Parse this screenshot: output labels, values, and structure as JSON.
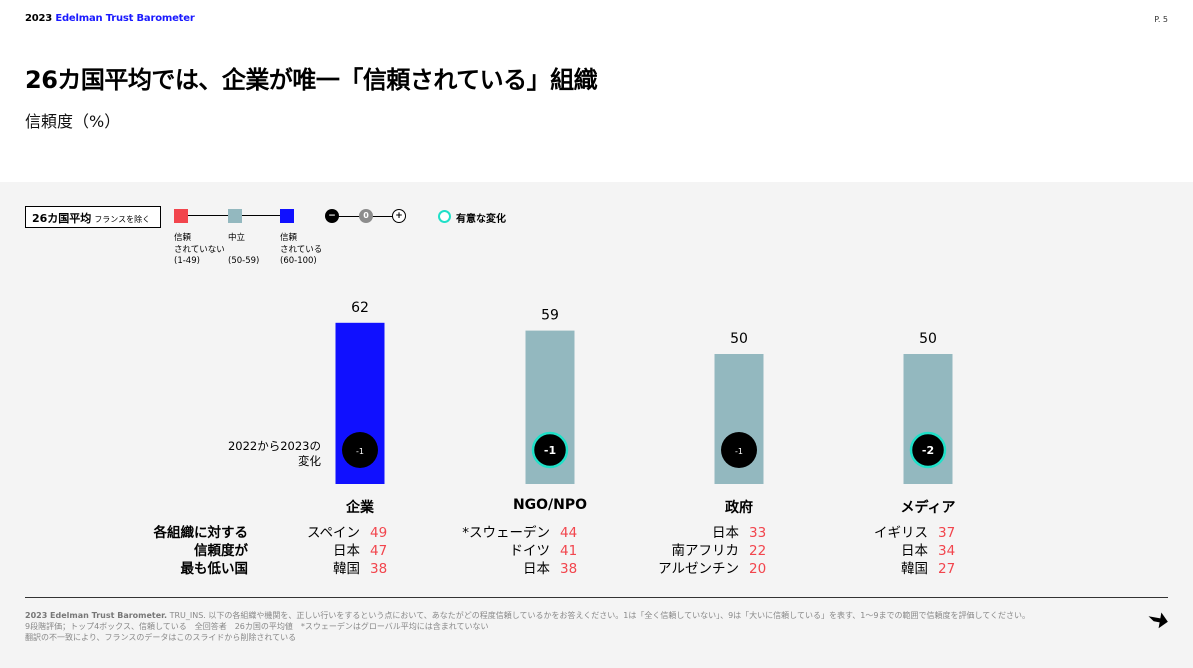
{
  "header": {
    "brand_year": "2023",
    "brand_name": "Edelman Trust Barometer",
    "page": "P. 5"
  },
  "title": "26カ国平均では、企業が唯一「信頼されている」組織",
  "subtitle": "信頼度（%）",
  "legend": {
    "box_label": "26カ国平均",
    "box_small": "フランスを除く",
    "scale": [
      {
        "lines": [
          "信頼",
          "されていない",
          "(1-49)"
        ],
        "color": "#f2454d"
      },
      {
        "lines": [
          "中立",
          "",
          "(50-59)"
        ],
        "color": "#93b8bf"
      },
      {
        "lines": [
          "信頼",
          "されている",
          "(60-100)"
        ],
        "color": "#1010ff"
      }
    ],
    "change_minus": "−",
    "change_zero": "0",
    "change_plus": "+",
    "significant_label": "有意な変化",
    "significant_color": "#20e0c8"
  },
  "change_axis_label": [
    "2022から2023の",
    "変化"
  ],
  "chart_data": {
    "type": "bar",
    "categories": [
      "企業",
      "NGO/NPO",
      "政府",
      "メディア"
    ],
    "values": [
      62,
      59,
      50,
      50
    ],
    "changes": [
      "-1",
      "-1",
      "-1",
      "-2"
    ],
    "significant": [
      false,
      true,
      false,
      true
    ],
    "ylim": [
      0,
      100
    ],
    "colors": {
      "trusted": "#1010ff",
      "neutral": "#93b8bf",
      "distrusted": "#f2454d"
    }
  },
  "lowest_header": [
    "各組織に対する",
    "信頼度が",
    "最も低い国"
  ],
  "lowest": [
    [
      {
        "country": "スペイン",
        "value": "49"
      },
      {
        "country": "日本",
        "value": "47"
      },
      {
        "country": "韓国",
        "value": "38"
      }
    ],
    [
      {
        "country": "*スウェーデン",
        "value": "44"
      },
      {
        "country": "ドイツ",
        "value": "41"
      },
      {
        "country": "日本",
        "value": "38"
      }
    ],
    [
      {
        "country": "日本",
        "value": "33"
      },
      {
        "country": "南アフリカ",
        "value": "22"
      },
      {
        "country": "アルゼンチン",
        "value": "20"
      }
    ],
    [
      {
        "country": "イギリス",
        "value": "37"
      },
      {
        "country": "日本",
        "value": "34"
      },
      {
        "country": "韓国",
        "value": "27"
      }
    ]
  ],
  "footnote": {
    "source": "2023 Edelman Trust Barometer.",
    "line1": "TRU_INS. 以下の各組織や機関を、正しい行いをするという点において、あなたがどの程度信頼しているかをお答えください。1は「全く信頼していない」、9は「大いに信頼している」を表す、1〜9までの範囲で信頼度を評価してください。",
    "line2": "9段階評価；トップ4ボックス、信頼している　全回答者　26カ国の平均値　*スウェーデンはグローバル平均には含まれていない",
    "line3": "翻訳の不一致により、フランスのデータはこのスライドから削除されている"
  }
}
